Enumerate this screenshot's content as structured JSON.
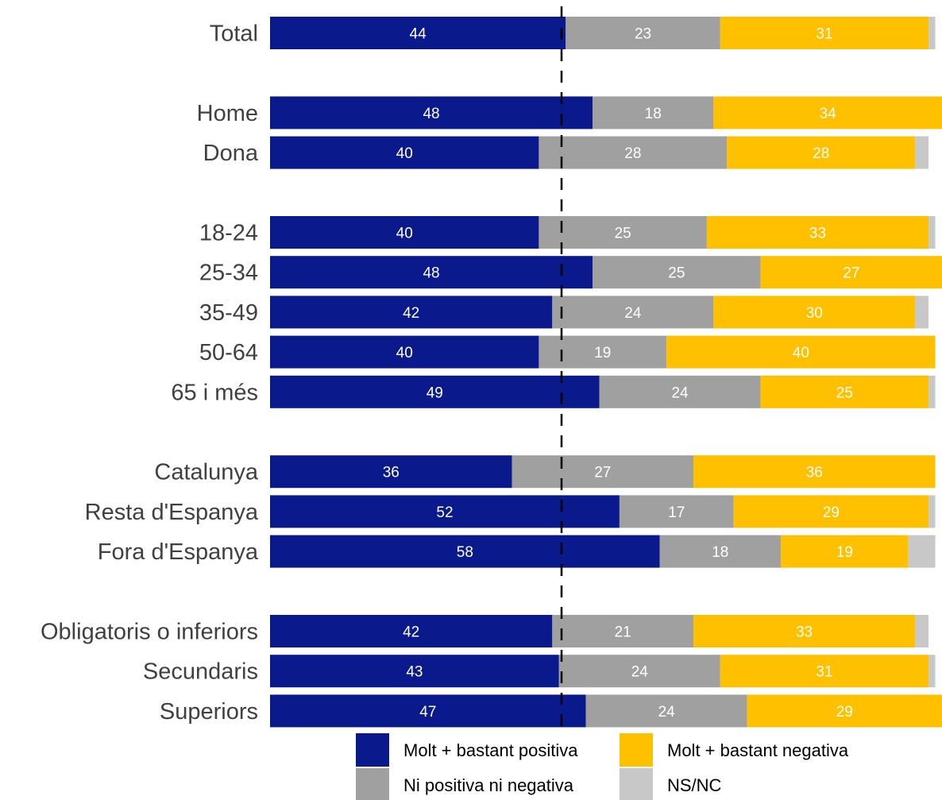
{
  "chart_data": {
    "type": "bar",
    "orientation": "horizontal",
    "stacked": true,
    "categories": [
      "Total",
      "",
      "Home",
      "Dona",
      "",
      "18-24",
      "25-34",
      "35-49",
      "50-64",
      "65 i més",
      "",
      "Catalunya",
      "Resta d'Espanya",
      "Fora d'Espanya",
      "",
      "Obligatoris o inferiors",
      "Secundaris",
      "Superiors"
    ],
    "series": [
      {
        "name": "Molt + bastant positiva",
        "color": "#0A1A8C",
        "values": [
          44,
          null,
          48,
          40,
          null,
          40,
          48,
          42,
          40,
          49,
          null,
          36,
          52,
          58,
          null,
          42,
          43,
          47
        ]
      },
      {
        "name": "Ni positiva ni negativa",
        "color": "#A0A0A0",
        "values": [
          23,
          null,
          18,
          28,
          null,
          25,
          25,
          24,
          19,
          24,
          null,
          27,
          17,
          18,
          null,
          21,
          24,
          24
        ]
      },
      {
        "name": "Molt + bastant negativa",
        "color": "#FFC000",
        "values": [
          31,
          null,
          34,
          28,
          null,
          33,
          27,
          30,
          40,
          25,
          null,
          36,
          29,
          19,
          null,
          33,
          31,
          29
        ]
      },
      {
        "name": "NS/NC",
        "color": "#C8C8C8",
        "values": [
          1,
          null,
          0,
          2,
          null,
          1,
          0,
          2,
          0,
          1,
          null,
          0,
          1,
          4,
          null,
          2,
          1,
          0
        ]
      }
    ],
    "xlim": [
      0,
      100
    ],
    "reference_line": {
      "value": 50,
      "style": "dashed"
    },
    "legend": {
      "placement": "bottom",
      "order": [
        "Molt + bastant positiva",
        "Molt + bastant negativa",
        "Ni positiva ni negativa",
        "NS/NC"
      ]
    },
    "grid": false,
    "title": "",
    "xlabel": "",
    "ylabel": ""
  }
}
